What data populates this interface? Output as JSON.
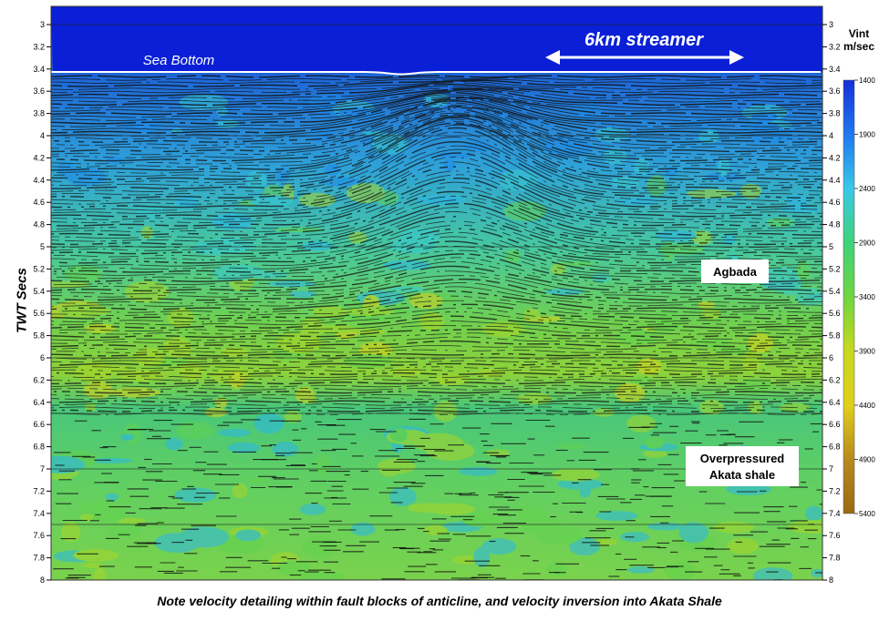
{
  "figure": {
    "y_axis_label": "TWT Secs",
    "y_ticks": [
      "3",
      "3.2",
      "3.4",
      "3.6",
      "3.8",
      "4",
      "4.2",
      "4.4",
      "4.6",
      "4.8",
      "5",
      "5.2",
      "5.4",
      "5.6",
      "5.8",
      "6",
      "6.2",
      "6.4",
      "6.6",
      "6.8",
      "7",
      "7.2",
      "7.4",
      "7.6",
      "7.8",
      "8"
    ],
    "y_range": [
      3,
      8
    ],
    "sea_bottom_label": "Sea Bottom",
    "streamer_label": "6km streamer",
    "annotations": {
      "agbada": "Agbada",
      "akata_line1": "Overpressured",
      "akata_line2": "Akata shale"
    },
    "caption": "Note velocity detailing within fault blocks of anticline, and velocity inversion into Akata Shale"
  },
  "colorbar": {
    "title_line1": "Vint",
    "title_line2": "m/sec",
    "ticks": [
      "1400",
      "1900",
      "2400",
      "2900",
      "3400",
      "3900",
      "4400",
      "4900",
      "5400"
    ],
    "colors": [
      "#1430d8",
      "#1f78f0",
      "#39c8e8",
      "#3fd27a",
      "#6ed640",
      "#c7d81e",
      "#e0cf1a",
      "#b88a1e",
      "#9a6a12"
    ]
  },
  "colors": {
    "sea": "#0a1fd6",
    "sea_bottom_line": "#ffffff",
    "reflector": "#101010",
    "grid_line": "#222222"
  }
}
